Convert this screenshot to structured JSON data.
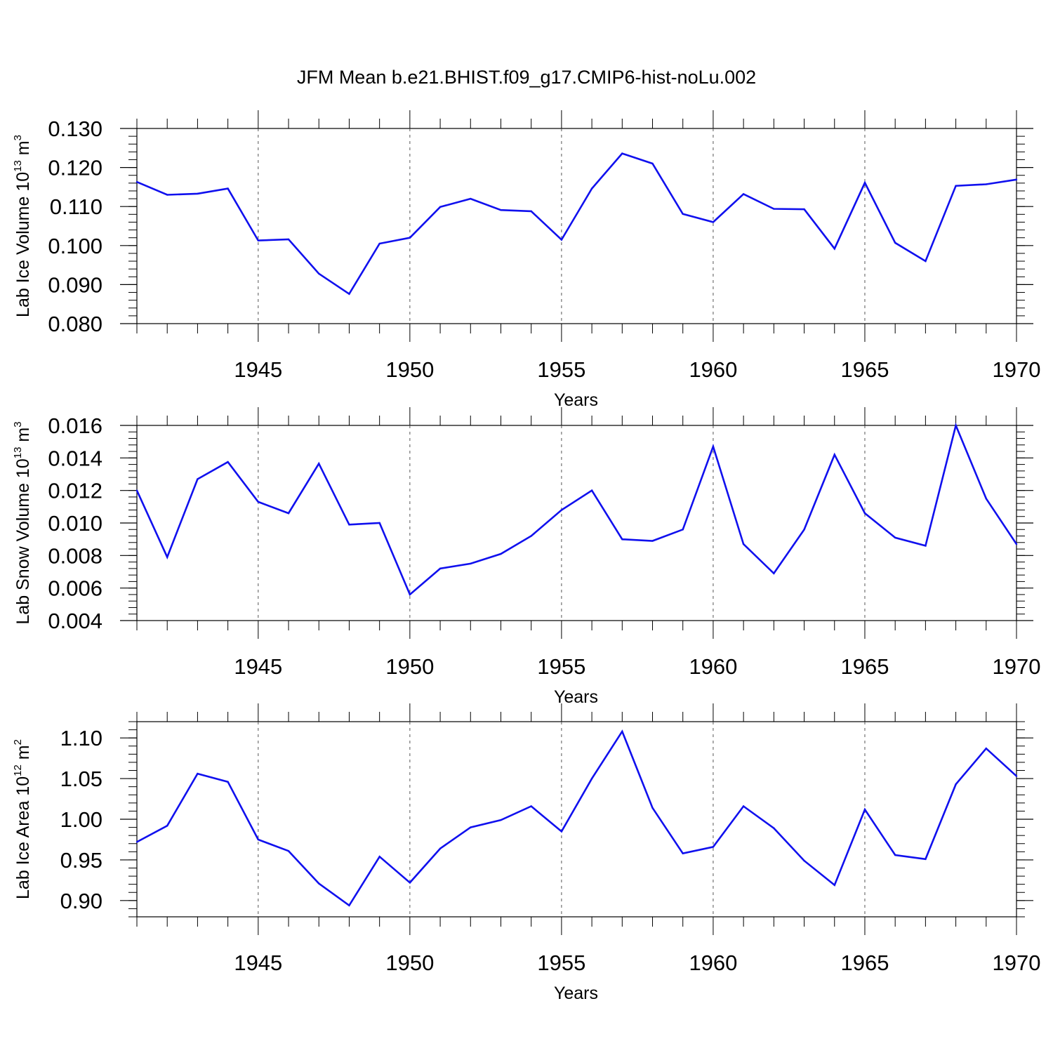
{
  "title": "JFM Mean b.e21.BHIST.f09_g17.CMIP6-hist-noLu.002",
  "colors": {
    "line": "#1010ee",
    "axis": "#000000",
    "grid": "#555555"
  },
  "chart_data": [
    {
      "type": "line",
      "ylabel_main": "Lab Ice Volume 10",
      "ylabel_exp": "13",
      "ylabel_unit": " m",
      "ylabel_unit_exp": "3",
      "xlabel": "Years",
      "xlim": [
        1941,
        1970
      ],
      "ylim": [
        0.08,
        0.13
      ],
      "xticks": [
        1945,
        1950,
        1955,
        1960,
        1965,
        1970
      ],
      "yticks": [
        0.08,
        0.09,
        0.1,
        0.11,
        0.12,
        0.13
      ],
      "ytick_labels": [
        "0.080",
        "0.090",
        "0.100",
        "0.110",
        "0.120",
        "0.130"
      ],
      "xtick_labels": [
        "1945",
        "1950",
        "1955",
        "1960",
        "1965",
        "1970"
      ],
      "x": [
        1941,
        1942,
        1943,
        1944,
        1945,
        1946,
        1947,
        1948,
        1949,
        1950,
        1951,
        1952,
        1953,
        1954,
        1955,
        1956,
        1957,
        1958,
        1959,
        1960,
        1961,
        1962,
        1963,
        1964,
        1965,
        1966,
        1967,
        1968,
        1969,
        1970
      ],
      "values": [
        0.1163,
        0.113,
        0.1133,
        0.1146,
        0.1013,
        0.1016,
        0.0928,
        0.0876,
        0.1005,
        0.102,
        0.1099,
        0.112,
        0.1091,
        0.1088,
        0.1015,
        0.1146,
        0.1236,
        0.121,
        0.1081,
        0.106,
        0.1132,
        0.1094,
        0.1093,
        0.0992,
        0.1161,
        0.1007,
        0.096,
        0.1153,
        0.1157,
        0.1169
      ]
    },
    {
      "type": "line",
      "ylabel_main": "Lab Snow Volume 10",
      "ylabel_exp": "13",
      "ylabel_unit": " m",
      "ylabel_unit_exp": "3",
      "xlabel": "Years",
      "xlim": [
        1941,
        1970
      ],
      "ylim": [
        0.004,
        0.016
      ],
      "xticks": [
        1945,
        1950,
        1955,
        1960,
        1965,
        1970
      ],
      "yticks": [
        0.004,
        0.006,
        0.008,
        0.01,
        0.012,
        0.014,
        0.016
      ],
      "ytick_labels": [
        "0.004",
        "0.006",
        "0.008",
        "0.010",
        "0.012",
        "0.014",
        "0.016"
      ],
      "xtick_labels": [
        "1945",
        "1950",
        "1955",
        "1960",
        "1965",
        "1970"
      ],
      "x": [
        1941,
        1942,
        1943,
        1944,
        1945,
        1946,
        1947,
        1948,
        1949,
        1950,
        1951,
        1952,
        1953,
        1954,
        1955,
        1956,
        1957,
        1958,
        1959,
        1960,
        1961,
        1962,
        1963,
        1964,
        1965,
        1966,
        1967,
        1968,
        1969,
        1970
      ],
      "values": [
        0.012,
        0.0079,
        0.0127,
        0.01375,
        0.0113,
        0.0106,
        0.01365,
        0.0099,
        0.01,
        0.0056,
        0.0072,
        0.0075,
        0.0081,
        0.0092,
        0.0108,
        0.012,
        0.009,
        0.0089,
        0.0096,
        0.0147,
        0.0087,
        0.0069,
        0.0096,
        0.0142,
        0.0106,
        0.0091,
        0.0086,
        0.016,
        0.0115,
        0.0087
      ]
    },
    {
      "type": "line",
      "ylabel_main": "Lab Ice Area 10",
      "ylabel_exp": "12",
      "ylabel_unit": " m",
      "ylabel_unit_exp": "2",
      "xlabel": "Years",
      "xlim": [
        1941,
        1970
      ],
      "ylim": [
        0.88,
        1.12
      ],
      "xticks": [
        1945,
        1950,
        1955,
        1960,
        1965,
        1970
      ],
      "yticks": [
        0.9,
        0.95,
        1.0,
        1.05,
        1.1
      ],
      "ytick_labels": [
        "0.90",
        "0.95",
        "1.00",
        "1.05",
        "1.10"
      ],
      "xtick_labels": [
        "1945",
        "1950",
        "1955",
        "1960",
        "1965",
        "1970"
      ],
      "x": [
        1941,
        1942,
        1943,
        1944,
        1945,
        1946,
        1947,
        1948,
        1949,
        1950,
        1951,
        1952,
        1953,
        1954,
        1955,
        1956,
        1957,
        1958,
        1959,
        1960,
        1961,
        1962,
        1963,
        1964,
        1965,
        1966,
        1967,
        1968,
        1969,
        1970
      ],
      "values": [
        0.972,
        0.992,
        1.056,
        1.046,
        0.975,
        0.961,
        0.921,
        0.894,
        0.954,
        0.922,
        0.964,
        0.99,
        0.999,
        1.016,
        0.985,
        1.05,
        1.108,
        1.014,
        0.958,
        0.966,
        1.016,
        0.989,
        0.949,
        0.919,
        1.012,
        0.956,
        0.951,
        1.043,
        1.087,
        1.053
      ]
    }
  ]
}
